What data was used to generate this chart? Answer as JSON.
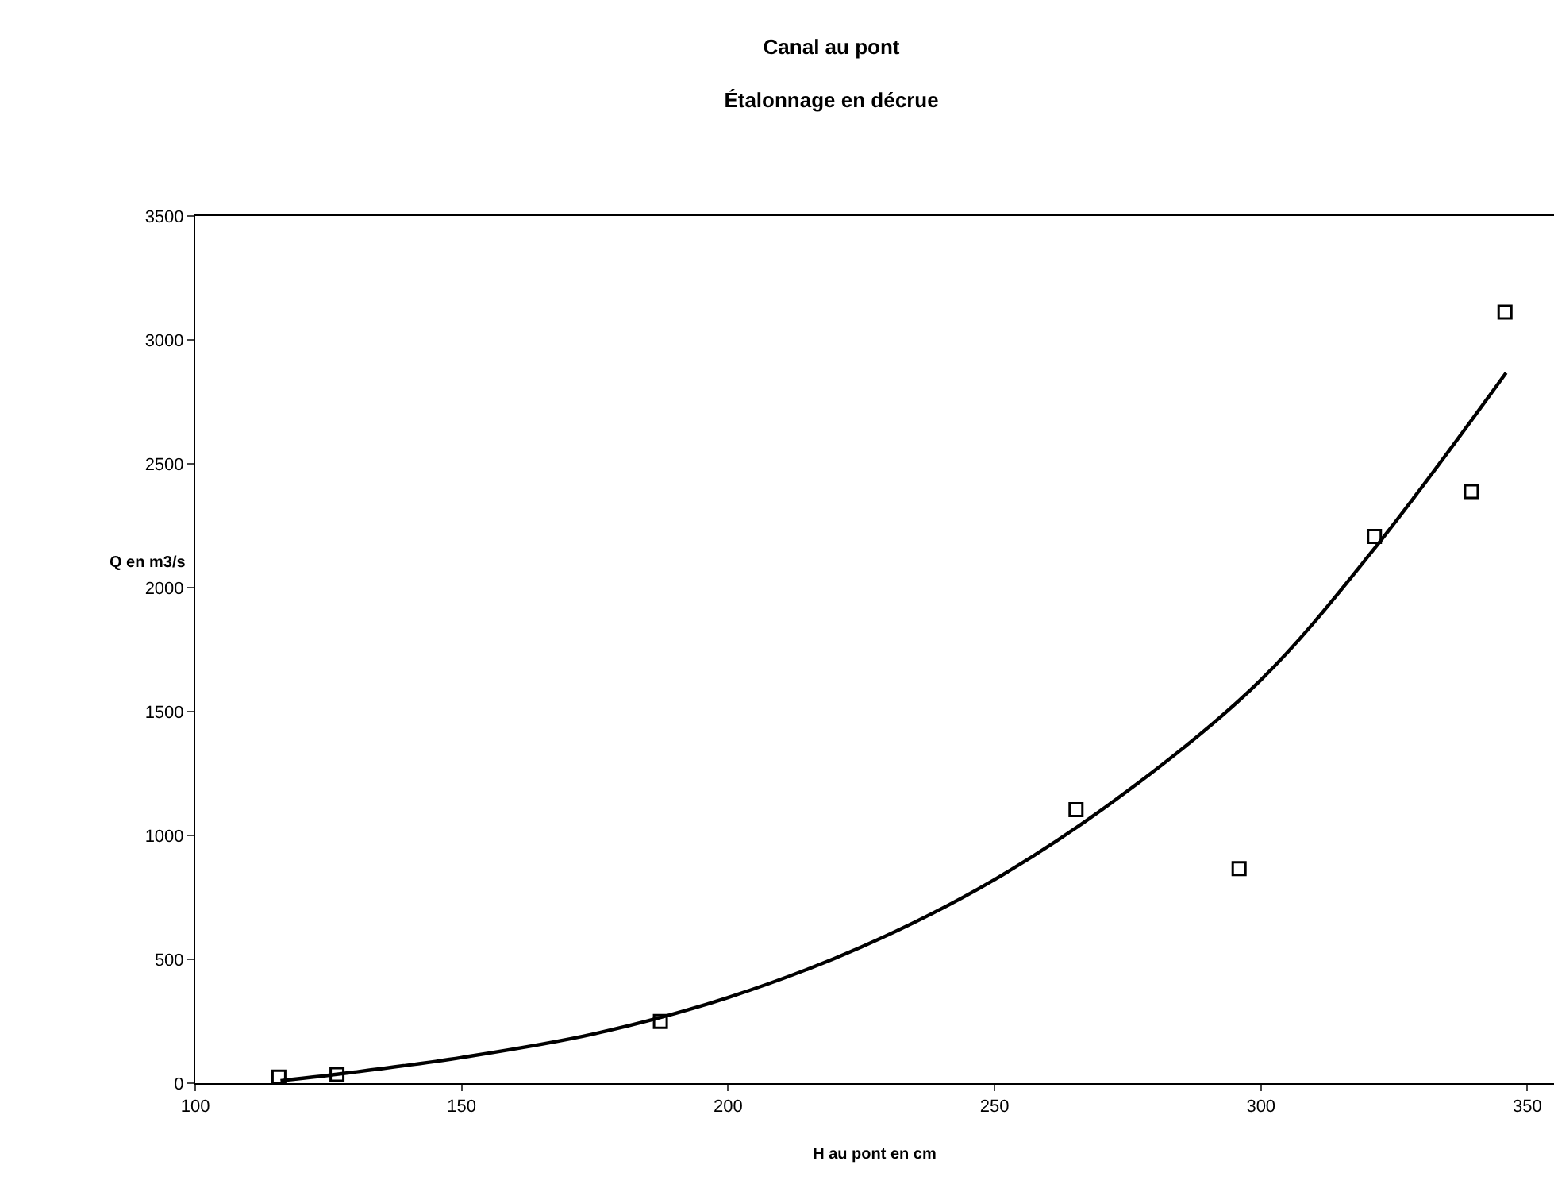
{
  "chart_data": {
    "type": "scatter",
    "title": "Canal au pont",
    "subtitle": "Étalonnage en décrue",
    "xlabel": "H au pont en cm",
    "ylabel": "Q en m3/s",
    "xlim": [
      100,
      355
    ],
    "xticks": [
      100,
      150,
      200,
      250,
      300,
      350
    ],
    "ylim": [
      0,
      3500
    ],
    "yticks": [
      0,
      500,
      1000,
      1500,
      2000,
      2500,
      3000,
      3500
    ],
    "grid": false,
    "series": [
      {
        "marker": "square",
        "color": "#000000",
        "x": [
          115.7,
          126.6,
          187.3,
          265.3,
          295.9,
          321.3,
          339.5,
          345.8
        ],
        "values": [
          25,
          35,
          249,
          1104,
          866,
          2207,
          2388,
          3112
        ]
      },
      {
        "type": "line",
        "marker": "none",
        "color": "#000000",
        "x": [
          116,
          130,
          150,
          175,
          200,
          225,
          250,
          275,
          300,
          321,
          346
        ],
        "values": [
          10,
          45,
          104,
          200,
          346,
          550,
          822,
          1180,
          1628,
          2150,
          2867
        ]
      }
    ]
  }
}
